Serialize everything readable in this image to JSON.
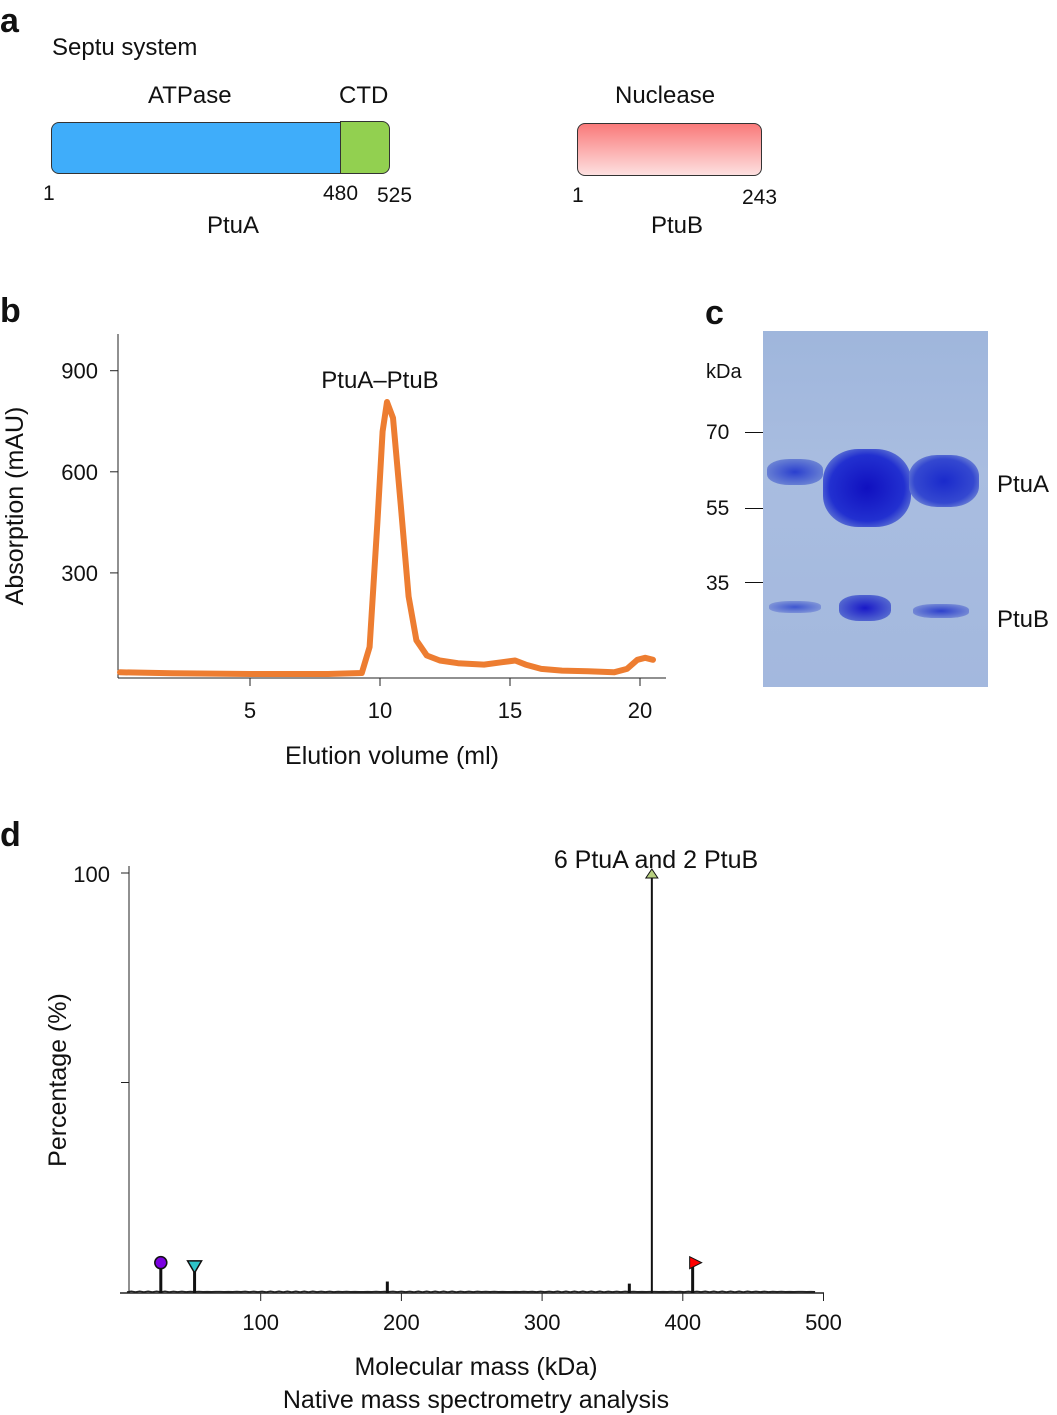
{
  "panel_a": {
    "label": "a",
    "title": "Septu system",
    "ptua": {
      "name": "PtuA",
      "domain1": "ATPase",
      "domain2": "CTD",
      "start": "1",
      "boundary": "480",
      "end": "525",
      "domain1_color": "#3fadfa",
      "domain2_color": "#92d050"
    },
    "ptub": {
      "name": "PtuB",
      "domain": "Nuclease",
      "start": "1",
      "end": "243",
      "color": "#fa8080"
    }
  },
  "panel_c": {
    "label": "c",
    "unit": "kDa",
    "markers": [
      "70",
      "55",
      "35"
    ],
    "band_labels": [
      "PtuA",
      "PtuB"
    ]
  },
  "chart_data": [
    {
      "type": "line",
      "panel": "b",
      "xlabel": "Elution volume (ml)",
      "ylabel": "Absorption (mAU)",
      "xlim": [
        0,
        21
      ],
      "ylim": [
        0,
        1000
      ],
      "xticks": [
        5,
        10,
        15,
        20
      ],
      "yticks": [
        300,
        600,
        900
      ],
      "annotation": "PtuA–PtuB",
      "color": "#ed7d31",
      "x": [
        0,
        2,
        5,
        8,
        9.3,
        9.6,
        9.9,
        10.1,
        10.27,
        10.5,
        10.8,
        11.1,
        11.4,
        11.8,
        12.3,
        13,
        14,
        14.7,
        15.2,
        15.6,
        16.2,
        17,
        18,
        19,
        19.5,
        19.9,
        20.2,
        20.5
      ],
      "y": [
        5,
        2,
        0,
        0,
        3,
        80,
        450,
        720,
        807,
        760,
        500,
        230,
        100,
        55,
        40,
        32,
        28,
        35,
        40,
        28,
        15,
        10,
        8,
        5,
        15,
        42,
        48,
        42
      ]
    },
    {
      "type": "bar",
      "panel": "d",
      "title": "6 PtuA and 2 PtuB",
      "xlabel": "Molecular mass (kDa)",
      "caption": "Native mass spectrometry analysis",
      "ylabel": "Percentage (%)",
      "xlim": [
        0,
        500
      ],
      "ylim": [
        0,
        100
      ],
      "xticks": [
        100,
        200,
        300,
        400,
        500
      ],
      "ytick_labels": [
        "100"
      ],
      "peaks": [
        {
          "x": 29,
          "y": 7,
          "marker": "circle",
          "color": "#7b00e0"
        },
        {
          "x": 53,
          "y": 6,
          "marker": "triangle-down",
          "color": "#2ec4c8"
        },
        {
          "x": 190,
          "y": 2.5
        },
        {
          "x": 362,
          "y": 2
        },
        {
          "x": 378,
          "y": 100,
          "marker": "triangle-up",
          "color": "#b8d080"
        },
        {
          "x": 407,
          "y": 7,
          "marker": "flag",
          "color": "#ff0000"
        }
      ]
    }
  ],
  "panel_labels": {
    "b": "b",
    "d": "d"
  }
}
